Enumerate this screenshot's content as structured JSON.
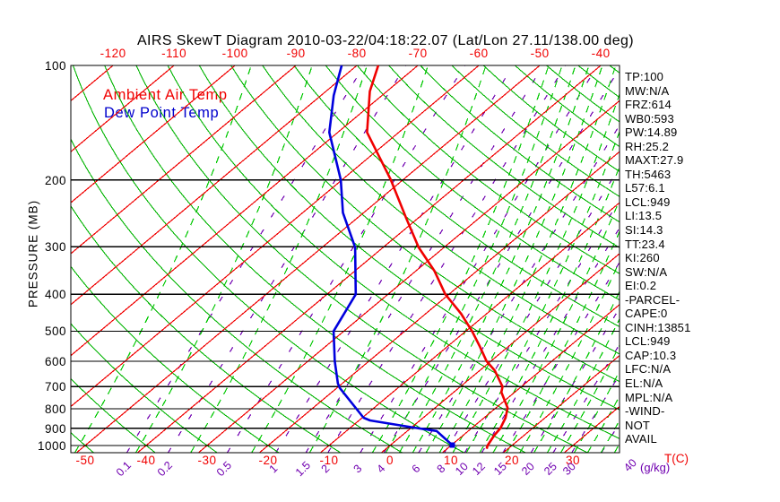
{
  "title": "AIRS SkewT Diagram 2010-03-22/04:18:22.07 (Lat/Lon 27.11/138.00 deg)",
  "colors": {
    "ambient": "#f00000",
    "dewpoint": "#0000dd",
    "isotherm": "#f00000",
    "dry_adiabat": "#00b400",
    "moist_adiabat": "#00c800",
    "mixing_ratio": "#7000b0",
    "isobar": "#000000",
    "legend_dew_text": "#0000cc"
  },
  "left_axis": {
    "label": "PRESSURE (MB)",
    "ticks": [
      "100",
      "200",
      "300",
      "400",
      "500",
      "600",
      "700",
      "800",
      "900",
      "1000"
    ]
  },
  "top_axis": {
    "ticks": [
      "-120",
      "-110",
      "-100",
      "-90",
      "-80",
      "-70",
      "-60",
      "-50",
      "-40"
    ]
  },
  "bottom_axis": {
    "ticks": [
      "-50",
      "-40",
      "-30",
      "-20",
      "-10",
      "0",
      "10",
      "20",
      "30"
    ],
    "unit": "T(C)"
  },
  "mixing_axis": {
    "labels": [
      "0.1",
      "0.2",
      "0.5",
      "1",
      "1.5",
      "2",
      "3",
      "4",
      "6",
      "8",
      "10",
      "12",
      "15",
      "20",
      "25",
      "30"
    ],
    "overlap_label": "40",
    "unit": "(g/kg)"
  },
  "legend": {
    "ambient": "Ambient Air Temp",
    "dewpoint": "Dew Point Temp"
  },
  "stats": [
    "TP:100",
    "MW:N/A",
    "FRZ:614",
    "WB0:593",
    "PW:14.89",
    "RH:25.2",
    "MAXT:27.9",
    "TH:5463",
    "L57:6.1",
    "LCL:949",
    "LI:13.5",
    "SI:14.3",
    "TT:23.4",
    "KI:260",
    "SW:N/A",
    "EI:0.2",
    "-PARCEL-",
    "CAPE:0",
    "CINH:13851",
    "LCL:949",
    "CAP:10.3",
    "LFC:N/A",
    "EL:N/A",
    "MPL:N/A",
    "-WIND-",
    "NOT",
    "AVAIL"
  ],
  "chart_data": {
    "type": "line",
    "title": "AIRS SkewT Diagram 2010-03-22/04:18:22.07 (Lat/Lon 27.11/138.00 deg)",
    "x_axis": {
      "label": "T(C)",
      "top_ticks_c": [
        -120,
        -110,
        -100,
        -90,
        -80,
        -70,
        -60,
        -50,
        -40
      ],
      "bottom_ticks_c": [
        -50,
        -40,
        -30,
        -20,
        -10,
        0,
        10,
        20,
        30
      ]
    },
    "y_axis": {
      "label": "PRESSURE (MB)",
      "scale": "log",
      "range_mb": [
        100,
        1045
      ],
      "ticks_mb": [
        100,
        200,
        300,
        400,
        500,
        600,
        700,
        800,
        900,
        1000
      ]
    },
    "series": [
      {
        "name": "Ambient Air Temp",
        "color": "#f00000",
        "points_p_mb_T_c": [
          [
            100,
            -76.5
          ],
          [
            117,
            -72.8
          ],
          [
            150,
            -65.2
          ],
          [
            200,
            -52.0
          ],
          [
            252,
            -42.0
          ],
          [
            276,
            -38.0
          ],
          [
            301,
            -34.2
          ],
          [
            347,
            -27.0
          ],
          [
            400,
            -20.6
          ],
          [
            450,
            -14.2
          ],
          [
            500,
            -9.0
          ],
          [
            550,
            -4.6
          ],
          [
            600,
            -0.7
          ],
          [
            634,
            2.4
          ],
          [
            700,
            6.9
          ],
          [
            724,
            7.8
          ],
          [
            796,
            11.9
          ],
          [
            845,
            13.5
          ],
          [
            900,
            14.7
          ],
          [
            940,
            15.1
          ],
          [
            1000,
            16.0
          ],
          [
            1020,
            16.5
          ]
        ]
      },
      {
        "name": "Dew Point Temp",
        "color": "#0000dd",
        "end_marker": true,
        "points_p_mb_T_c": [
          [
            100,
            -82.5
          ],
          [
            120,
            -77.9
          ],
          [
            150,
            -71.4
          ],
          [
            200,
            -60.2
          ],
          [
            244,
            -53.4
          ],
          [
            301,
            -44.6
          ],
          [
            400,
            -35.3
          ],
          [
            500,
            -31.7
          ],
          [
            600,
            -25.6
          ],
          [
            687,
            -20.7
          ],
          [
            706,
            -19.5
          ],
          [
            845,
            -9.8
          ],
          [
            859,
            -8.2
          ],
          [
            897,
            0.4
          ],
          [
            916,
            4.8
          ],
          [
            997,
            10.1
          ]
        ]
      }
    ],
    "grid": {
      "isobars_mb": [
        100,
        200,
        300,
        400,
        500,
        600,
        700,
        800,
        900,
        1000
      ],
      "isotherms_c": {
        "start": -120,
        "end": 40,
        "step": 10
      },
      "dry_adiabats_c": {
        "start": -50,
        "end": 180,
        "step": 10
      },
      "moist_adiabat_surface_c": [
        -51,
        -41,
        -32,
        -22,
        -12.5,
        -2.2,
        0,
        2.2,
        4.4,
        6.6,
        8.8,
        11,
        13.2,
        15.4,
        17.6,
        19.8,
        22,
        24.3,
        26.5,
        28.7,
        30.9,
        33.1,
        35.3,
        37.5
      ],
      "mixing_ratio_g_kg": [
        0.1,
        0.2,
        0.5,
        1,
        1.5,
        2,
        3,
        4,
        6,
        8,
        10,
        12,
        15,
        20,
        25,
        30,
        40
      ]
    }
  }
}
